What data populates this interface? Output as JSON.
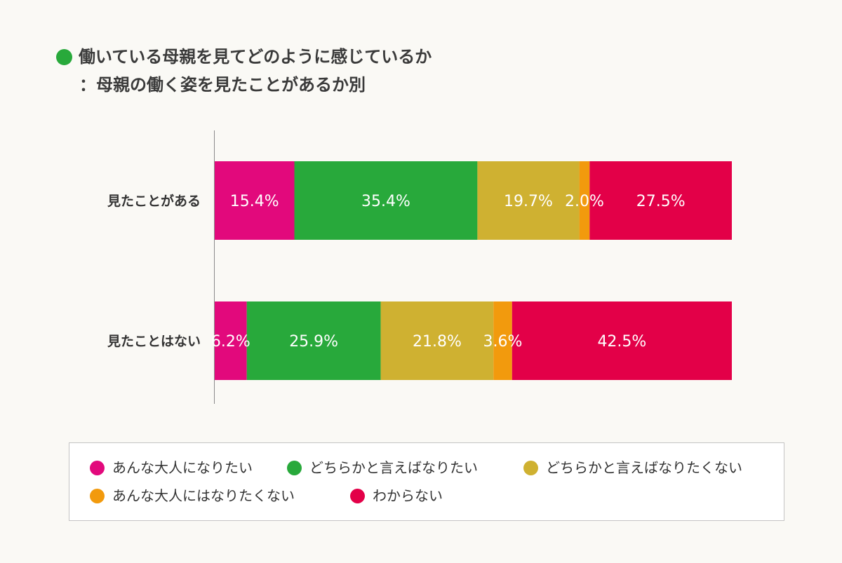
{
  "title": {
    "line1": "働いている母親を見てどのように感じているか",
    "line2": "：母親の働く姿を見たことがあるか別",
    "bullet_color": "#28a93b"
  },
  "chart_data": {
    "type": "bar",
    "orientation": "horizontal",
    "stacked": true,
    "normalized": true,
    "unit": "%",
    "categories": [
      "見たことがある",
      "見たことはない"
    ],
    "series": [
      {
        "name": "あんな大人になりたい",
        "color": "#e2097c",
        "values": [
          15.4,
          6.2
        ]
      },
      {
        "name": "どちらかと言えばなりたい",
        "color": "#28a93b",
        "values": [
          35.4,
          25.9
        ]
      },
      {
        "name": "どちらかと言えばなりたくない",
        "color": "#cfb131",
        "values": [
          19.7,
          21.8
        ]
      },
      {
        "name": "あんな大人にはなりたくない",
        "color": "#f29a0d",
        "values": [
          2.0,
          3.6
        ]
      },
      {
        "name": "わからない",
        "color": "#e30048",
        "values": [
          27.5,
          42.5
        ]
      }
    ],
    "data_labels": [
      [
        "15.4%",
        "35.4%",
        "19.7%",
        "2.0%",
        "27.5%"
      ],
      [
        "6.2%",
        "25.9%",
        "21.8%",
        "3.6%",
        "42.5%"
      ]
    ],
    "legend_position": "bottom",
    "grid": false
  },
  "legend": {
    "items": [
      {
        "label": "あんな大人になりたい",
        "color": "#e2097c"
      },
      {
        "label": "どちらかと言えばなりたい",
        "color": "#28a93b"
      },
      {
        "label": "どちらかと言えばなりたくない",
        "color": "#cfb131"
      },
      {
        "label": "あんな大人にはなりたくない",
        "color": "#f29a0d"
      },
      {
        "label": "わからない",
        "color": "#e30048"
      }
    ]
  }
}
